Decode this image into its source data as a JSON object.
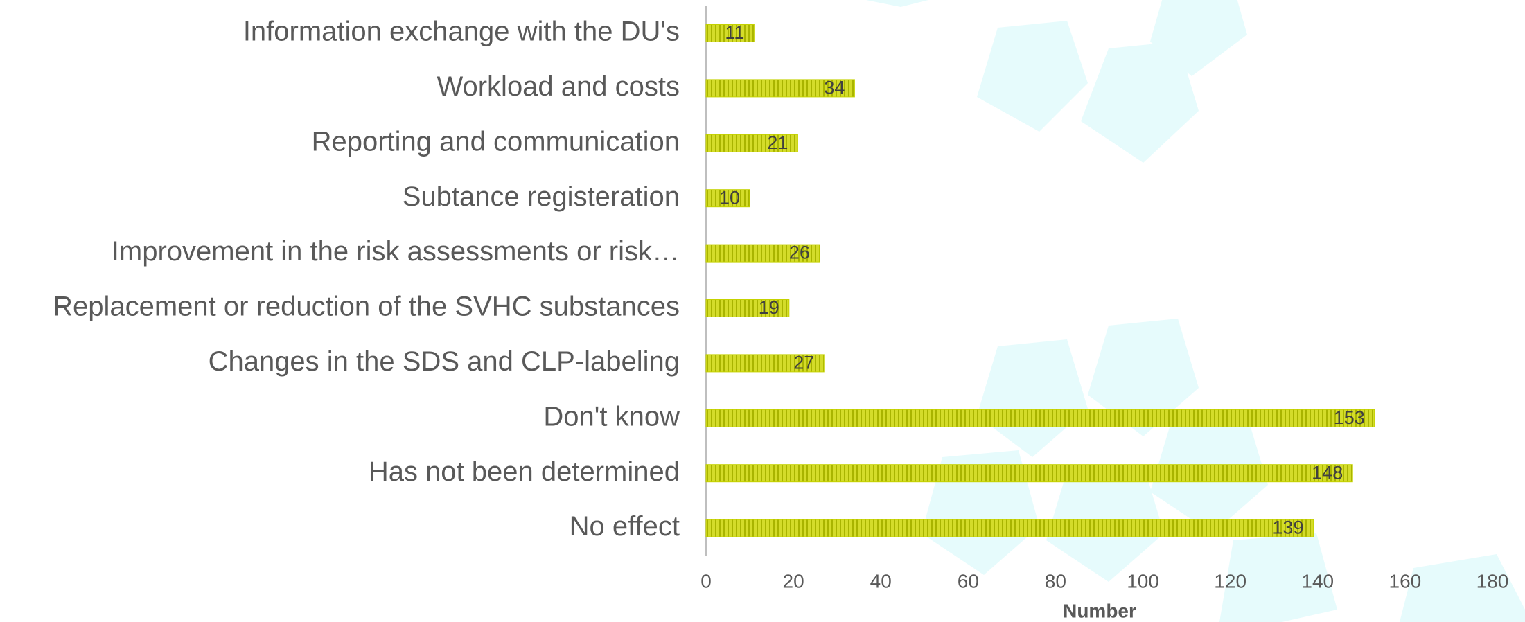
{
  "chart_data": {
    "type": "bar",
    "orientation": "horizontal",
    "categories": [
      "Information exchange with the DU's",
      "Workload and costs",
      "Reporting and communication",
      "Subtance registeration",
      "Improvement in the risk assessments or risk…",
      "Replacement or reduction of the SVHC substances",
      "Changes in the SDS and CLP-labeling",
      "Don't know",
      "Has not been determined",
      "No effect"
    ],
    "values": [
      11,
      34,
      21,
      10,
      26,
      19,
      27,
      153,
      148,
      139
    ],
    "color": "#c5d200",
    "xlabel": "Number",
    "xlim": [
      0,
      180
    ],
    "xticks": [
      0,
      20,
      40,
      60,
      80,
      100,
      120,
      140,
      160,
      180
    ],
    "grid": false
  }
}
